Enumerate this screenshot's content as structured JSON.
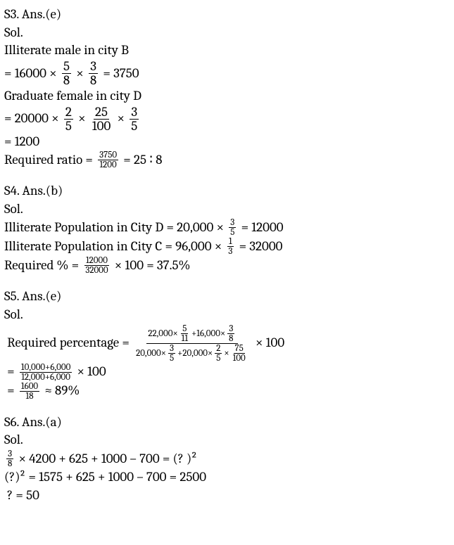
{
  "s3": {
    "header": "S3. Ans.(e)",
    "sol": "Sol.",
    "l1": "Illiterate male in city B",
    "l2_a": "= 16000 × ",
    "f1_n": "5",
    "f1_d": "8",
    "l2_b": " × ",
    "f2_n": "3",
    "f2_d": "8",
    "l2_c": " = 3750",
    "l3": "Graduate female in city D",
    "l4_a": "= 20000 × ",
    "f3_n": "2",
    "f3_d": "5",
    "l4_b": " × ",
    "f4_n": "25",
    "f4_d": "100",
    "l4_c": " × ",
    "f5_n": "3",
    "f5_d": "5",
    "l5": "= 1200",
    "l6_a": "Required ratio = ",
    "f6_n": "3750",
    "f6_d": "1200",
    "l6_b": " = 25 ∶ 8"
  },
  "s4": {
    "header": "S4. Ans.(b)",
    "sol": "Sol.",
    "l1_a": "Illiterate Population in City D = 20,000 × ",
    "f1_n": "3",
    "f1_d": "5",
    "l1_b": " = 12000",
    "l2_a": "Illiterate Population in City C = 96,000 × ",
    "f2_n": "1",
    "f2_d": "3",
    "l2_b": " = 32000",
    "l3_a": "Required % = ",
    "f3_n": "12000",
    "f3_d": "32000",
    "l3_b": " × 100 = 37.5%"
  },
  "s5": {
    "header": "S5. Ans.(e)",
    "sol": "Sol.",
    "l1_a": " Required percentage = ",
    "num_a": "22,000×",
    "nf1_n": "5",
    "nf1_d": "11",
    "num_b": "+16,000×",
    "nf2_n": "3",
    "nf2_d": "8",
    "den_a": "20,000×",
    "df1_n": "3",
    "df1_d": "5",
    "den_b": "+20,000×",
    "df2_n": "2",
    "df2_d": "5",
    "den_c": "×",
    "df3_n": "75",
    "df3_d": "100",
    "l1_b": " × 100",
    "l2_a": " = ",
    "f2_n": "10,000+6,000",
    "f2_d": "12,000+6,000",
    "l2_b": " × 100",
    "l3_a": " = ",
    "f3_n": "1600",
    "f3_d": "18",
    "l3_b": " ≈ 89%"
  },
  "s6": {
    "header": "S6. Ans.(a)",
    "sol": "Sol.",
    "f1_n": "3",
    "f1_d": "8",
    "l1_a": " × 4200 + 625 + 1000 – 700 = (? )²",
    "l2": "(?)² = 1575 + 625 + 1000 – 700 = 2500",
    "l3": " ? = 50"
  }
}
